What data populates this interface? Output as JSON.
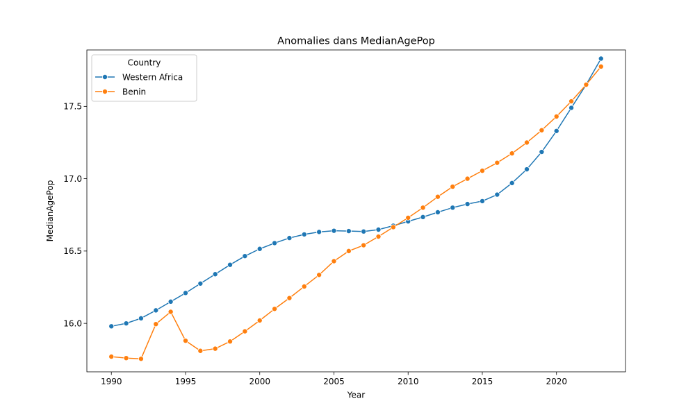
{
  "chart_data": {
    "type": "line",
    "title": "Anomalies dans MedianAgePop",
    "xlabel": "Year",
    "ylabel": "MedianAgePop",
    "xlim": [
      1988.35,
      2024.65
    ],
    "ylim": [
      15.665,
      17.89
    ],
    "x_ticks": [
      1990,
      1995,
      2000,
      2005,
      2010,
      2015,
      2020
    ],
    "x_tick_labels": [
      "1990",
      "1995",
      "2000",
      "2005",
      "2010",
      "2015",
      "2020"
    ],
    "y_ticks": [
      16.0,
      16.5,
      17.0,
      17.5
    ],
    "y_tick_labels": [
      "16.0",
      "16.5",
      "17.0",
      "17.5"
    ],
    "grid": false,
    "legend": {
      "title": "Country",
      "position": "top-left"
    },
    "x": [
      1990,
      1991,
      1992,
      1993,
      1994,
      1995,
      1996,
      1997,
      1998,
      1999,
      2000,
      2001,
      2002,
      2003,
      2004,
      2005,
      2006,
      2007,
      2008,
      2009,
      2010,
      2011,
      2012,
      2013,
      2014,
      2015,
      2016,
      2017,
      2018,
      2019,
      2020,
      2021,
      2022,
      2023
    ],
    "series": [
      {
        "name": "Western Africa",
        "color": "#1f77b4",
        "values": [
          15.98,
          16.0,
          16.035,
          16.09,
          16.15,
          16.21,
          16.275,
          16.34,
          16.405,
          16.465,
          16.515,
          16.555,
          16.59,
          16.615,
          16.632,
          16.64,
          16.638,
          16.635,
          16.648,
          16.675,
          16.705,
          16.735,
          16.768,
          16.8,
          16.825,
          16.845,
          16.89,
          16.97,
          17.065,
          17.185,
          17.33,
          17.49,
          17.65,
          17.83
        ]
      },
      {
        "name": "Benin",
        "color": "#ff7f0e",
        "values": [
          15.77,
          15.76,
          15.755,
          15.995,
          16.08,
          15.88,
          15.81,
          15.825,
          15.875,
          15.945,
          16.02,
          16.1,
          16.175,
          16.255,
          16.335,
          16.43,
          16.5,
          16.54,
          16.6,
          16.665,
          16.73,
          16.8,
          16.875,
          16.945,
          17.0,
          17.055,
          17.11,
          17.175,
          17.25,
          17.335,
          17.43,
          17.535,
          17.65,
          17.775
        ]
      }
    ]
  }
}
